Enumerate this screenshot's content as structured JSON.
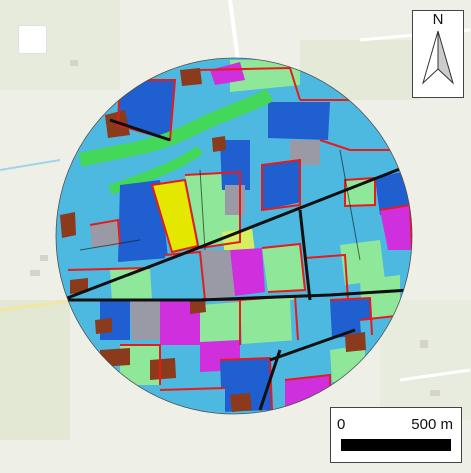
{
  "map": {
    "north_label": "N",
    "scale_bar": {
      "start_label": "0",
      "end_label": "500 m"
    },
    "colors": {
      "base_background": "#eef0e8",
      "field_light_blue": "#4db8e0",
      "field_dark_blue": "#1f5fcf",
      "field_light_green": "#8fe89a",
      "field_bright_green": "#44d85a",
      "field_magenta": "#cf2fdc",
      "field_yellow": "#e4e800",
      "field_gray": "#9a9aa6",
      "field_brown": "#8b3a1c",
      "parcel_border_red": "#e81a1a",
      "road_black": "#101010"
    },
    "icons": [
      "north-arrow-icon",
      "scale-bar"
    ]
  }
}
